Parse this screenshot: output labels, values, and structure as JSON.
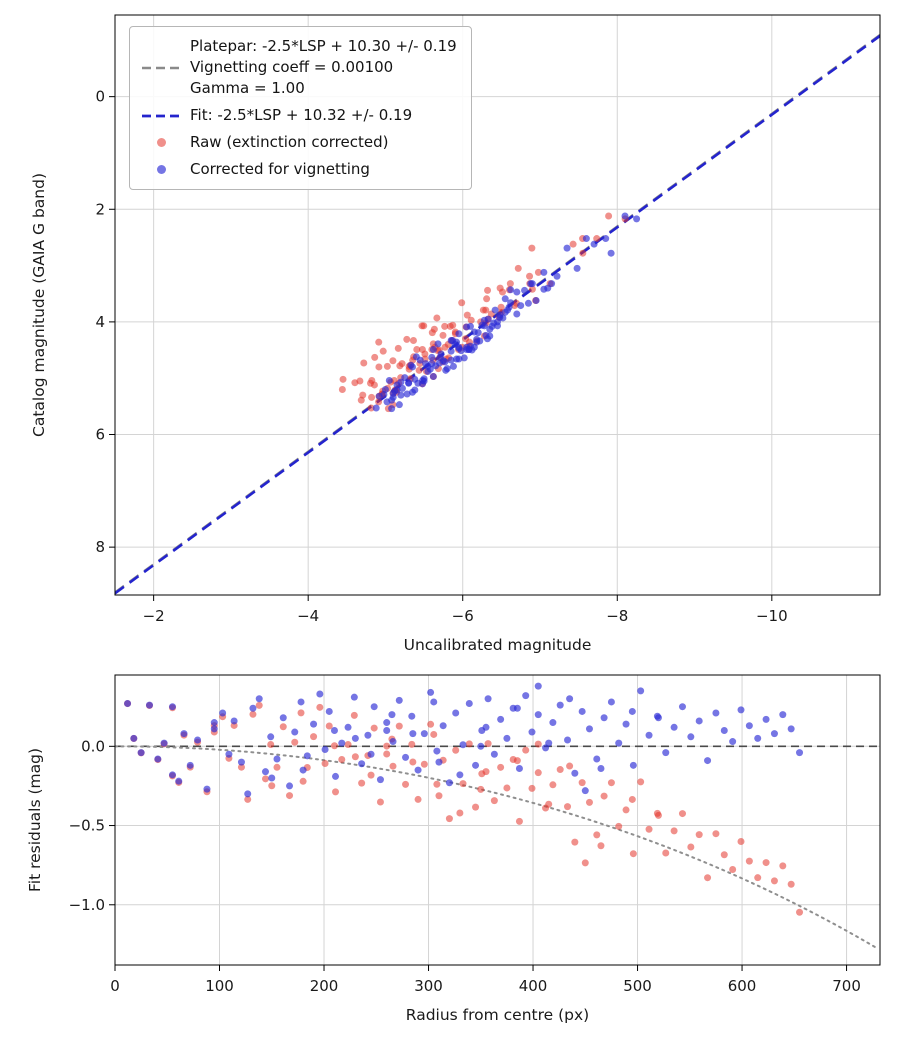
{
  "style": {
    "background": "#ffffff",
    "grid": "#d4d4d4",
    "spine": "#000000",
    "tick_label_color": "#1a1a1a"
  },
  "chart_data": [
    {
      "type": "scatter",
      "name": "photometric-calibration",
      "xlabel": "Uncalibrated magnitude",
      "ylabel": "Catalog magnitude (GAIA G band)",
      "xlim": [
        -1.5,
        -11.4
      ],
      "ylim": [
        -1.45,
        8.85
      ],
      "grid": true,
      "legend_position": "upper left",
      "xticks": [
        {
          "v": -2,
          "label": "−2"
        },
        {
          "v": -4,
          "label": "−4"
        },
        {
          "v": -6,
          "label": "−6"
        },
        {
          "v": -8,
          "label": "−8"
        },
        {
          "v": -10,
          "label": "−10"
        }
      ],
      "yticks": [
        {
          "v": 0,
          "label": "0"
        },
        {
          "v": 2,
          "label": "2"
        },
        {
          "v": 4,
          "label": "4"
        },
        {
          "v": 6,
          "label": "6"
        },
        {
          "v": 8,
          "label": "8"
        }
      ],
      "lines": [
        {
          "name": "platepar",
          "label_lines": [
            "Platepar: -2.5*LSP + 10.30 +/- 0.19",
            "Vignetting coeff = 0.00100",
            "Gamma = 1.00"
          ],
          "slope": 1,
          "intercept": 10.3,
          "style": "dashed",
          "color": "#8a8a8a",
          "width": 2,
          "dash": "11 7"
        },
        {
          "name": "fit",
          "label": "Fit: -2.5*LSP + 10.32 +/- 0.19",
          "slope": 1,
          "intercept": 10.32,
          "style": "dashed",
          "color": "#2424cd",
          "width": 2.6,
          "dash": "11 7"
        }
      ],
      "series": [
        {
          "name": "Raw (extinction corrected)",
          "color": "#e3342b",
          "opacity": 0.55,
          "derive": "x = lsp - vignetting(r); y = lsp + 10.32 + res"
        },
        {
          "name": "Corrected for vignetting",
          "color": "#2b2bd6",
          "opacity": 0.65,
          "derive": "x = lsp; y = lsp + 10.32 + res"
        }
      ]
    },
    {
      "type": "scatter",
      "name": "fit-residuals-vs-radius",
      "xlabel": "Radius from centre (px)",
      "ylabel": "Fit residuals (mag)",
      "xlim": [
        0,
        732
      ],
      "ylim": [
        0.45,
        -1.38
      ],
      "grid": true,
      "xticks": [
        {
          "v": 0,
          "label": "0"
        },
        {
          "v": 100,
          "label": "100"
        },
        {
          "v": 200,
          "label": "200"
        },
        {
          "v": 300,
          "label": "300"
        },
        {
          "v": 400,
          "label": "400"
        },
        {
          "v": 500,
          "label": "500"
        },
        {
          "v": 600,
          "label": "600"
        },
        {
          "v": 700,
          "label": "700"
        }
      ],
      "yticks": [
        {
          "v": 0,
          "label": "0.0"
        },
        {
          "v": -0.5,
          "label": "−0.5"
        },
        {
          "v": -1.0,
          "label": "−1.0"
        }
      ],
      "zero_line": {
        "v": 0,
        "color": "#4a4a4a",
        "style": "dashed",
        "dash": "8 5",
        "width": 1.6
      },
      "model_curve": {
        "name": "vignetting-model",
        "coeff": 0.001,
        "formula": "2.5*log10(cos(coeff*r)^4)",
        "color": "#8f8f8f",
        "style": "dotted",
        "width": 2
      },
      "series": [
        {
          "name": "Raw (extinction corrected)",
          "color": "#e3342b",
          "opacity": 0.55,
          "derive": "x = r; y = res + vignetting(r)"
        },
        {
          "name": "Corrected for vignetting",
          "color": "#2b2bd6",
          "opacity": 0.65,
          "derive": "x = r; y = res"
        }
      ]
    }
  ],
  "stars": {
    "columns": [
      "radius_px",
      "lsp_corrected_mag",
      "fit_residual_mag"
    ],
    "note": "vignetting(r) = 2.5*log10(cos(0.001*r)^4); raw LSP = lsp - vignetting(r)",
    "points": [
      [
        12,
        -5.62,
        0.27
      ],
      [
        18,
        -5.1,
        0.05
      ],
      [
        25,
        -6.33,
        -0.04
      ],
      [
        33,
        -5.48,
        0.26
      ],
      [
        41,
        -4.92,
        -0.08
      ],
      [
        47,
        -5.71,
        0.02
      ],
      [
        55,
        -6.05,
        -0.18
      ],
      [
        61,
        -5.33,
        -0.22
      ],
      [
        66,
        -6.48,
        0.08
      ],
      [
        72,
        -5.87,
        -0.12
      ],
      [
        79,
        -5.15,
        0.04
      ],
      [
        88,
        -6.62,
        -0.27
      ],
      [
        95,
        -5.55,
        0.11
      ],
      [
        103,
        -6.1,
        0.21
      ],
      [
        109,
        -4.98,
        -0.05
      ],
      [
        114,
        -5.77,
        0.16
      ],
      [
        121,
        -6.9,
        -0.1
      ],
      [
        127,
        -5.4,
        -0.3
      ],
      [
        132,
        -6.22,
        0.24
      ],
      [
        138,
        -5.08,
        0.3
      ],
      [
        144,
        -5.95,
        -0.16
      ],
      [
        149,
        -6.55,
        0.06
      ],
      [
        155,
        -5.25,
        -0.08
      ],
      [
        161,
        -6.05,
        0.18
      ],
      [
        167,
        -5.68,
        -0.25
      ],
      [
        172,
        -4.88,
        0.09
      ],
      [
        178,
        -6.35,
        0.28
      ],
      [
        184,
        -5.52,
        -0.06
      ],
      [
        190,
        -6.75,
        0.14
      ],
      [
        196,
        -5.18,
        0.33
      ],
      [
        201,
        -5.9,
        -0.02
      ],
      [
        205,
        -6.18,
        0.22
      ],
      [
        211,
        -5.45,
        -0.19
      ],
      [
        217,
        -6.6,
        0.02
      ],
      [
        223,
        -5.02,
        0.12
      ],
      [
        229,
        -5.8,
        0.31
      ],
      [
        236,
        -6.42,
        -0.11
      ],
      [
        242,
        -5.3,
        0.07
      ],
      [
        248,
        -6.08,
        0.25
      ],
      [
        254,
        -5.62,
        -0.21
      ],
      [
        260,
        -7.05,
        0.15
      ],
      [
        266,
        -5.12,
        0.03
      ],
      [
        272,
        -5.95,
        0.29
      ],
      [
        278,
        -6.28,
        -0.07
      ],
      [
        284,
        -5.5,
        0.19
      ],
      [
        290,
        -6.7,
        -0.15
      ],
      [
        296,
        -5.22,
        0.08
      ],
      [
        302,
        -6.02,
        0.34
      ],
      [
        308,
        -5.72,
        -0.03
      ],
      [
        314,
        -6.45,
        0.13
      ],
      [
        320,
        -5.05,
        -0.23
      ],
      [
        326,
        -5.85,
        0.21
      ],
      [
        333,
        -6.15,
        0.01
      ],
      [
        339,
        -5.38,
        0.27
      ],
      [
        345,
        -6.88,
        -0.12
      ],
      [
        351,
        -5.58,
        0.1
      ],
      [
        357,
        -6.32,
        0.3
      ],
      [
        363,
        -5.15,
        -0.05
      ],
      [
        369,
        -5.98,
        0.17
      ],
      [
        375,
        -6.58,
        0.05
      ],
      [
        381,
        -5.28,
        0.24
      ],
      [
        387,
        -6.1,
        -0.14
      ],
      [
        393,
        -5.78,
        0.32
      ],
      [
        399,
        -7.22,
        0.09
      ],
      [
        405,
        -5.48,
        0.2
      ],
      [
        412,
        -6.25,
        -0.01
      ],
      [
        419,
        -5.08,
        0.15
      ],
      [
        426,
        -5.92,
        0.26
      ],
      [
        433,
        -6.48,
        0.04
      ],
      [
        440,
        -5.35,
        -0.17
      ],
      [
        447,
        -6.05,
        0.22
      ],
      [
        454,
        -5.65,
        0.11
      ],
      [
        461,
        -6.8,
        -0.08
      ],
      [
        468,
        -5.2,
        0.18
      ],
      [
        475,
        -6.15,
        0.28
      ],
      [
        482,
        -5.55,
        0.02
      ],
      [
        489,
        -6.38,
        0.14
      ],
      [
        496,
        -5.0,
        -0.12
      ],
      [
        503,
        -5.88,
        0.35
      ],
      [
        511,
        -6.2,
        0.07
      ],
      [
        519,
        -5.42,
        0.19
      ],
      [
        527,
        -6.62,
        -0.04
      ],
      [
        535,
        -5.75,
        0.12
      ],
      [
        543,
        -6.08,
        0.25
      ],
      [
        551,
        -5.3,
        0.06
      ],
      [
        559,
        -6.35,
        0.16
      ],
      [
        567,
        -5.6,
        -0.09
      ],
      [
        575,
        -7.48,
        0.21
      ],
      [
        583,
        -5.95,
        0.1
      ],
      [
        591,
        -6.28,
        0.03
      ],
      [
        599,
        -5.5,
        0.23
      ],
      [
        607,
        -6.52,
        0.13
      ],
      [
        615,
        -5.85,
        0.05
      ],
      [
        623,
        -6.18,
        0.17
      ],
      [
        631,
        -5.38,
        0.08
      ],
      [
        639,
        -6.45,
        0.2
      ],
      [
        647,
        -5.7,
        0.11
      ],
      [
        655,
        -5.92,
        -0.04
      ],
      [
        230,
        -7.85,
        0.05
      ],
      [
        310,
        -8.1,
        -0.1
      ],
      [
        405,
        -7.92,
        0.38
      ],
      [
        150,
        -7.6,
        -0.2
      ],
      [
        260,
        -8.25,
        0.1
      ],
      [
        95,
        -7.15,
        0.15
      ],
      [
        350,
        -7.7,
        0.0
      ],
      [
        450,
        -7.35,
        -0.28
      ],
      [
        520,
        -7.1,
        0.18
      ],
      [
        55,
        -6.95,
        0.25
      ],
      [
        180,
        -7.05,
        -0.15
      ],
      [
        210,
        -6.4,
        0.1
      ],
      [
        245,
        -5.2,
        -0.05
      ],
      [
        265,
        -6.85,
        0.2
      ],
      [
        285,
        -5.95,
        0.08
      ],
      [
        305,
        -5.35,
        0.28
      ],
      [
        330,
        -6.55,
        -0.18
      ],
      [
        355,
        -5.1,
        0.12
      ],
      [
        385,
        -6.7,
        0.24
      ],
      [
        415,
        -5.6,
        0.02
      ],
      [
        435,
        -6.12,
        0.3
      ],
      [
        465,
        -5.85,
        -0.14
      ],
      [
        495,
        -6.3,
        0.22
      ]
    ]
  }
}
